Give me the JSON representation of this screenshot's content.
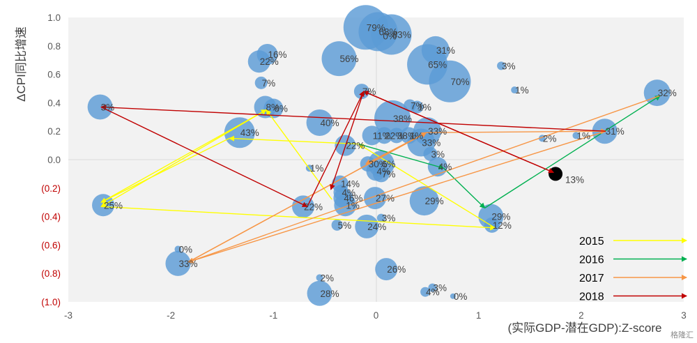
{
  "chart_data": {
    "type": "scatter",
    "subtype": "bubble-with-trajectory-arrows",
    "ylabel": "ΔCPI同比增速",
    "xlabel": "(实际GDP-潜在GDP):Z-score",
    "xlim": [
      -3,
      3
    ],
    "ylim": [
      -1.0,
      1.0
    ],
    "x_ticks": [
      "-3",
      "-2",
      "-1",
      "0",
      "1",
      "2",
      "3"
    ],
    "y_ticks": [
      {
        "label": "1.0",
        "value": 1.0,
        "color": "#595959"
      },
      {
        "label": "0.8",
        "value": 0.8,
        "color": "#595959"
      },
      {
        "label": "0.6",
        "value": 0.6,
        "color": "#595959"
      },
      {
        "label": "0.4",
        "value": 0.4,
        "color": "#595959"
      },
      {
        "label": "0.2",
        "value": 0.2,
        "color": "#595959"
      },
      {
        "label": "0.0",
        "value": 0.0,
        "color": "#595959"
      },
      {
        "label": "(0.2)",
        "value": -0.2,
        "color": "#c00000"
      },
      {
        "label": "(0.4)",
        "value": -0.4,
        "color": "#c00000"
      },
      {
        "label": "(0.6)",
        "value": -0.6,
        "color": "#c00000"
      },
      {
        "label": "(0.8)",
        "value": -0.8,
        "color": "#c00000"
      },
      {
        "label": "(1.0)",
        "value": -1.0,
        "color": "#c00000"
      }
    ],
    "bubbles": [
      {
        "x": -0.1,
        "y": 0.93,
        "r": 32,
        "label": "79%"
      },
      {
        "x": 0.02,
        "y": 0.9,
        "r": 28,
        "label": "68%"
      },
      {
        "x": 0.15,
        "y": 0.88,
        "r": 29,
        "label": "83%"
      },
      {
        "x": 0.06,
        "y": 0.87,
        "r": 6,
        "label": "0%"
      },
      {
        "x": 0.58,
        "y": 0.77,
        "r": 20,
        "label": "31%"
      },
      {
        "x": 0.5,
        "y": 0.67,
        "r": 29,
        "label": "65%"
      },
      {
        "x": 0.72,
        "y": 0.55,
        "r": 30,
        "label": "70%"
      },
      {
        "x": -0.36,
        "y": 0.71,
        "r": 25,
        "label": "56%"
      },
      {
        "x": -1.06,
        "y": 0.74,
        "r": 15,
        "label": "16%"
      },
      {
        "x": -1.14,
        "y": 0.69,
        "r": 16,
        "label": "22%"
      },
      {
        "x": -1.12,
        "y": 0.54,
        "r": 9,
        "label": "7%"
      },
      {
        "x": 1.22,
        "y": 0.66,
        "r": 6,
        "label": "3%"
      },
      {
        "x": 1.35,
        "y": 0.49,
        "r": 5,
        "label": "1%"
      },
      {
        "x": -0.14,
        "y": 0.48,
        "r": 11,
        "label": "7%"
      },
      {
        "x": 0.33,
        "y": 0.38,
        "r": 9,
        "label": "7%"
      },
      {
        "x": 0.4,
        "y": 0.37,
        "r": 9,
        "label": "1%"
      },
      {
        "x": -2.69,
        "y": 0.37,
        "r": 18,
        "label": "3%"
      },
      {
        "x": -1.08,
        "y": 0.37,
        "r": 16,
        "label": "8%"
      },
      {
        "x": -1.0,
        "y": 0.36,
        "r": 14,
        "label": "6%"
      },
      {
        "x": 0.16,
        "y": 0.29,
        "r": 26,
        "label": "38%"
      },
      {
        "x": -0.55,
        "y": 0.26,
        "r": 19,
        "label": "40%"
      },
      {
        "x": -1.33,
        "y": 0.19,
        "r": 22,
        "label": "43%"
      },
      {
        "x": -0.04,
        "y": 0.17,
        "r": 14,
        "label": "11%"
      },
      {
        "x": 0.08,
        "y": 0.17,
        "r": 12,
        "label": "22%"
      },
      {
        "x": 0.2,
        "y": 0.17,
        "r": 11,
        "label": "38%"
      },
      {
        "x": 0.32,
        "y": 0.17,
        "r": 12,
        "label": "1%"
      },
      {
        "x": 0.5,
        "y": 0.2,
        "r": 20,
        "label": "33%"
      },
      {
        "x": 2.23,
        "y": 0.2,
        "r": 18,
        "label": "31%"
      },
      {
        "x": 2.74,
        "y": 0.47,
        "r": 19,
        "label": "32%"
      },
      {
        "x": 1.62,
        "y": 0.15,
        "r": 5,
        "label": "2%"
      },
      {
        "x": 1.95,
        "y": 0.17,
        "r": 5,
        "label": "1%"
      },
      {
        "x": -0.3,
        "y": 0.1,
        "r": 15,
        "label": "22%"
      },
      {
        "x": 0.44,
        "y": 0.12,
        "r": 20,
        "label": "33%"
      },
      {
        "x": 0.53,
        "y": 0.04,
        "r": 10,
        "label": "3%"
      },
      {
        "x": 0.05,
        "y": -0.03,
        "r": 19,
        "label": "6%"
      },
      {
        "x": -0.08,
        "y": -0.03,
        "r": 11,
        "label": "30%"
      },
      {
        "x": 0.0,
        "y": -0.08,
        "r": 14,
        "label": "4%"
      },
      {
        "x": 0.05,
        "y": -0.1,
        "r": 12,
        "label": "7%"
      },
      {
        "x": 0.6,
        "y": -0.05,
        "r": 14,
        "label": "4%"
      },
      {
        "x": -0.65,
        "y": -0.06,
        "r": 5,
        "label": "1%"
      },
      {
        "x": -0.35,
        "y": -0.17,
        "r": 12,
        "label": "14%"
      },
      {
        "x": -0.34,
        "y": -0.23,
        "r": 11,
        "label": "4%"
      },
      {
        "x": -0.32,
        "y": -0.27,
        "r": 14,
        "label": "46%"
      },
      {
        "x": -0.01,
        "y": -0.27,
        "r": 16,
        "label": "27%"
      },
      {
        "x": -0.3,
        "y": -0.32,
        "r": 16,
        "label": "1%"
      },
      {
        "x": -0.71,
        "y": -0.33,
        "r": 16,
        "label": "22%"
      },
      {
        "x": 0.47,
        "y": -0.29,
        "r": 21,
        "label": "29%"
      },
      {
        "x": -2.66,
        "y": -0.32,
        "r": 16,
        "label": "25%"
      },
      {
        "x": 1.12,
        "y": -0.4,
        "r": 18,
        "label": "29%"
      },
      {
        "x": 1.13,
        "y": -0.46,
        "r": 11,
        "label": "12%"
      },
      {
        "x": -0.38,
        "y": -0.46,
        "r": 8,
        "label": "5%"
      },
      {
        "x": -0.09,
        "y": -0.47,
        "r": 17,
        "label": "24%"
      },
      {
        "x": 0.05,
        "y": -0.41,
        "r": 6,
        "label": "3%"
      },
      {
        "x": -1.93,
        "y": -0.73,
        "r": 18,
        "label": "33%"
      },
      {
        "x": -1.93,
        "y": -0.63,
        "r": 5,
        "label": "0%"
      },
      {
        "x": 0.1,
        "y": -0.77,
        "r": 16,
        "label": "26%"
      },
      {
        "x": -0.55,
        "y": -0.83,
        "r": 5,
        "label": "2%"
      },
      {
        "x": -0.55,
        "y": -0.94,
        "r": 18,
        "label": "28%"
      },
      {
        "x": 0.48,
        "y": -0.93,
        "r": 7,
        "label": "4%"
      },
      {
        "x": 0.55,
        "y": -0.9,
        "r": 6,
        "label": "3%"
      },
      {
        "x": 0.75,
        "y": -0.96,
        "r": 4,
        "label": "0%"
      },
      {
        "x": 1.75,
        "y": -0.1,
        "r": 10,
        "label": "13%",
        "color": "#000000"
      }
    ],
    "trajectories": [
      {
        "year": "2015",
        "color": "#ffff00",
        "points": [
          [
            -0.43,
            -0.28
          ],
          [
            -1.07,
            0.35
          ],
          [
            -2.68,
            -0.33
          ],
          [
            1.16,
            -0.48
          ],
          [
            -0.17,
            0.11
          ],
          [
            -1.43,
            0.15
          ],
          [
            -2.68,
            -0.3
          ],
          [
            -1.07,
            0.35
          ]
        ]
      },
      {
        "year": "2016",
        "color": "#00b050",
        "points": [
          [
            -0.17,
            0.11
          ],
          [
            0.66,
            -0.06
          ],
          [
            1.06,
            -0.34
          ],
          [
            2.77,
            0.45
          ]
        ]
      },
      {
        "year": "2017",
        "color": "#f79646",
        "points": [
          [
            2.77,
            0.45
          ],
          [
            -1.83,
            -0.72
          ],
          [
            0.49,
            0.19
          ],
          [
            2.24,
            0.2
          ],
          [
            -1.83,
            -0.72
          ],
          [
            0.49,
            0.19
          ],
          [
            -0.1,
            -0.03
          ]
        ]
      },
      {
        "year": "2018",
        "color": "#c00000",
        "points": [
          [
            2.24,
            0.2
          ],
          [
            -2.68,
            0.37
          ],
          [
            -0.67,
            -0.33
          ],
          [
            -0.12,
            0.48
          ],
          [
            1.73,
            -0.09
          ],
          [
            -0.12,
            0.48
          ],
          [
            -0.44,
            -0.21
          ]
        ]
      }
    ],
    "legend": [
      {
        "label": "2015",
        "color": "#ffff00"
      },
      {
        "label": "2016",
        "color": "#00b050"
      },
      {
        "label": "2017",
        "color": "#f79646"
      },
      {
        "label": "2018",
        "color": "#c00000"
      }
    ],
    "legend_position": "bottom-right",
    "grid": false
  },
  "watermark": "格隆汇"
}
